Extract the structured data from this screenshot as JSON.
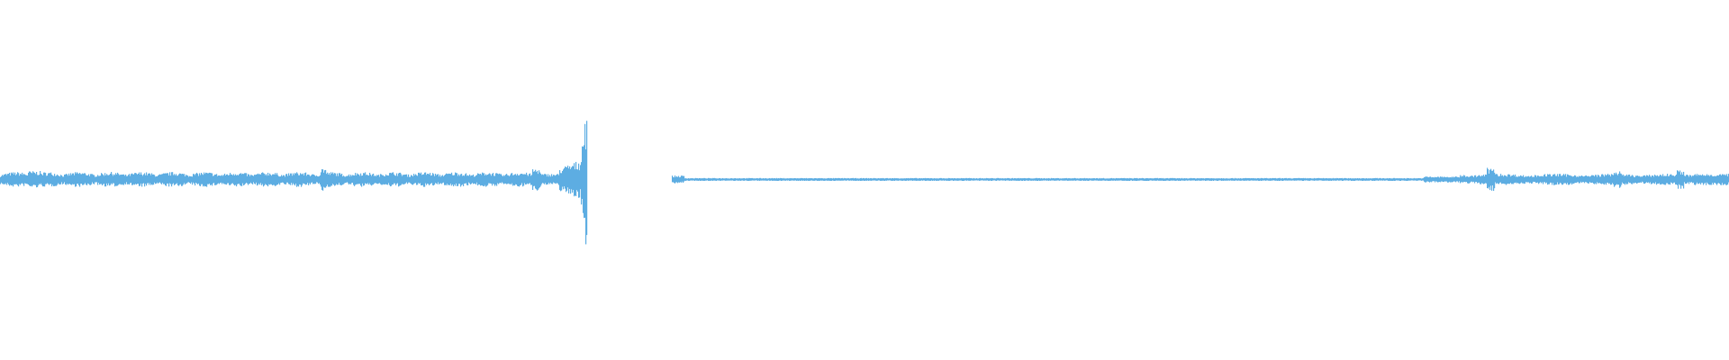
{
  "waveform": {
    "type": "audio-waveform",
    "color": "#5dade2",
    "background": "#ffffff",
    "peak_amplitude_fraction": 0.37,
    "silent_gap": true
  }
}
